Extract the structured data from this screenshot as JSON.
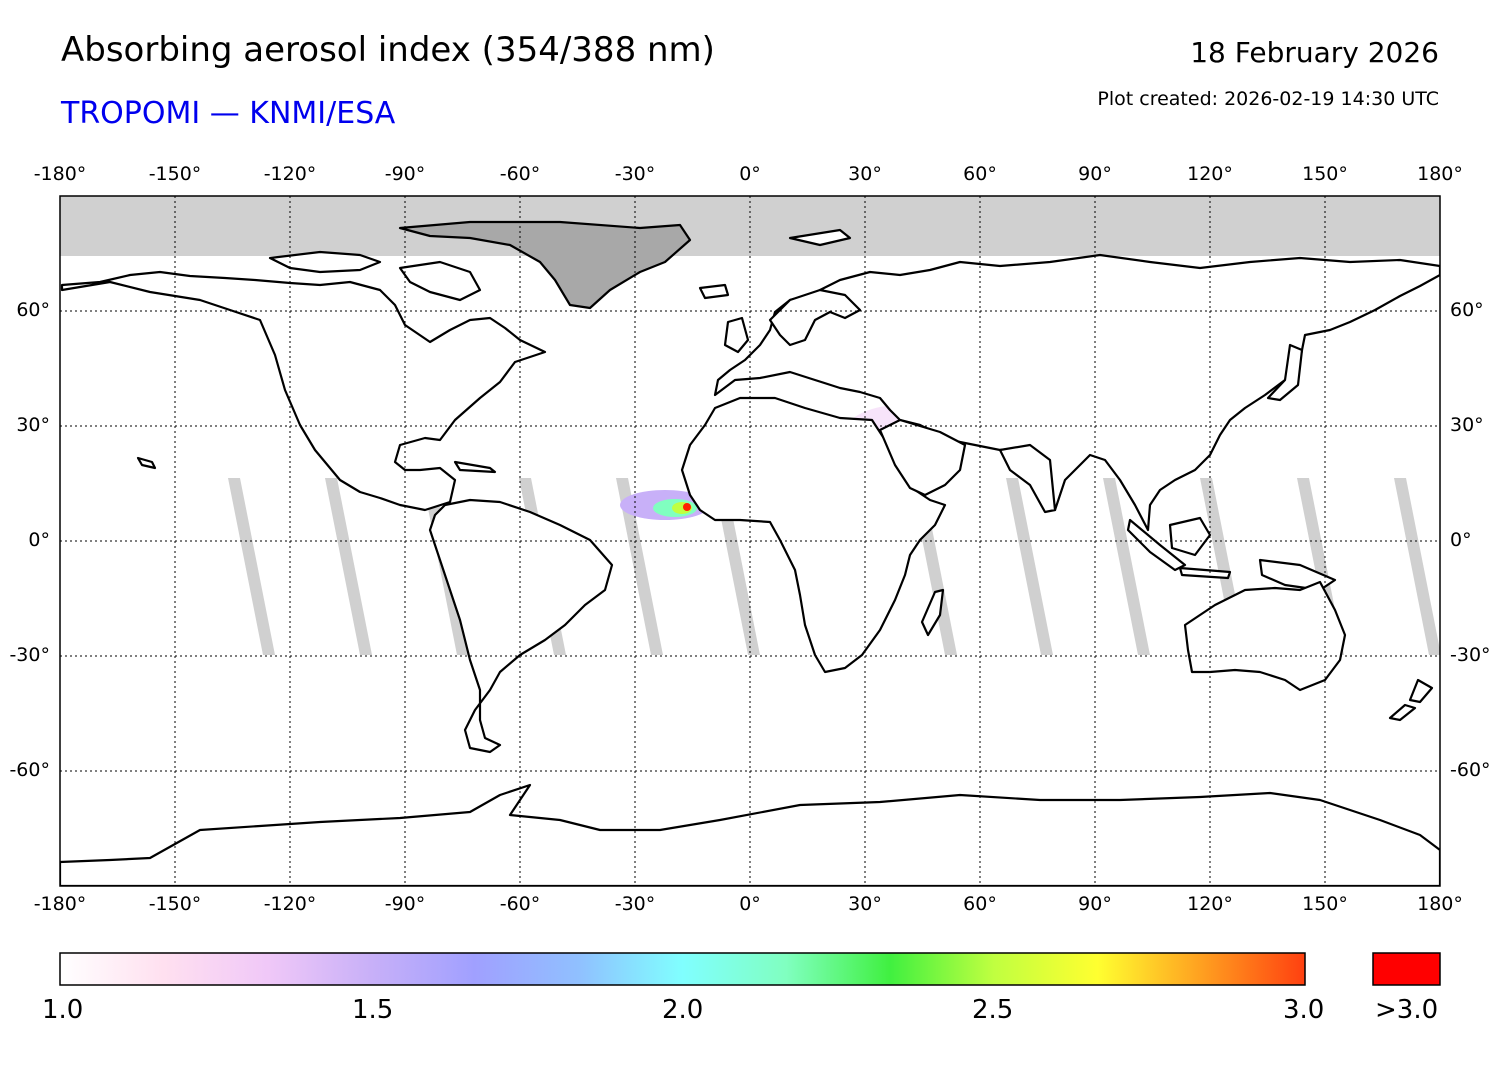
{
  "header": {
    "title": "Absorbing aerosol index (354/388 nm)",
    "subtitle": "TROPOMI — KNMI/ESA",
    "date": "18 February 2026",
    "plot_created": "Plot created: 2026-02-19 14:30 UTC"
  },
  "map": {
    "lon_ticks": [
      "-180°",
      "-150°",
      "-120°",
      "-90°",
      "-60°",
      "-30°",
      "0°",
      "30°",
      "60°",
      "90°",
      "120°",
      "150°",
      "180°"
    ],
    "lat_ticks": [
      "60°",
      "30°",
      "0°",
      "-30°",
      "-60°"
    ],
    "no_data_color": "#d0d0d0",
    "coast_color": "#000000"
  },
  "colorbar": {
    "labels": [
      "1.0",
      "1.5",
      "2.0",
      "2.5",
      "3.0"
    ],
    "overflow_label": ">3.0",
    "overflow_color": "#ff0000",
    "stops": [
      "#ffffff",
      "#ffe0f0",
      "#f0c8f8",
      "#c8b0f8",
      "#a0a0ff",
      "#90c0ff",
      "#80ffff",
      "#80ffc0",
      "#40f040",
      "#c0ff40",
      "#ffff30",
      "#ffa020",
      "#ff4010"
    ]
  }
}
